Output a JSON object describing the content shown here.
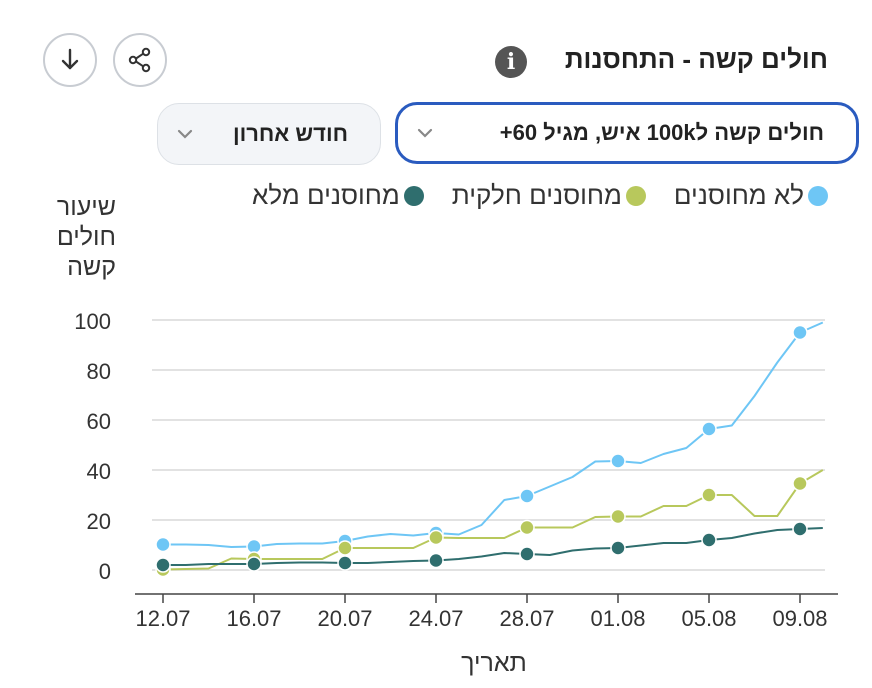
{
  "header": {
    "title": "חולים קשה - התחסנות",
    "info_icon": "info-icon",
    "download_icon": "download-icon",
    "share_icon": "share-icon"
  },
  "filters": {
    "metric": "חולים קשה ל100k איש, מגיל 60+",
    "period": "חודש אחרון"
  },
  "colors": {
    "unvaccinated": "#6ec6f5",
    "partial": "#b8c85c",
    "full": "#2f6e6e",
    "grid": "#d8d8d8",
    "select_border": "#2a5bbf"
  },
  "chart_data": {
    "type": "line",
    "ylabel": "שיעור חולים קשה",
    "xlabel": "תאריך",
    "ylim": [
      0,
      100
    ],
    "yticks": [
      0,
      20,
      40,
      60,
      80,
      100
    ],
    "xtick_labels": [
      "12.07",
      "16.07",
      "20.07",
      "24.07",
      "28.07",
      "01.08",
      "05.08",
      "09.08"
    ],
    "x": [
      "12.07",
      "13.07",
      "14.07",
      "15.07",
      "16.07",
      "17.07",
      "18.07",
      "19.07",
      "20.07",
      "21.07",
      "22.07",
      "23.07",
      "24.07",
      "25.07",
      "26.07",
      "27.07",
      "28.07",
      "29.07",
      "30.07",
      "31.07",
      "01.08",
      "02.08",
      "03.08",
      "04.08",
      "05.08",
      "06.08",
      "07.08",
      "08.08",
      "09.08",
      "10.08"
    ],
    "legend_position": "top",
    "grid": true,
    "series": [
      {
        "name": "לא מחוסנים",
        "color_key": "unvaccinated",
        "values": [
          10.2,
          10.2,
          10.0,
          9.2,
          9.4,
          10.4,
          10.6,
          10.6,
          11.6,
          13.4,
          14.4,
          13.8,
          14.8,
          14.2,
          18.0,
          28.0,
          29.6,
          33.4,
          37.2,
          43.4,
          43.6,
          42.8,
          46.4,
          48.8,
          56.4,
          57.8,
          69.6,
          83.0,
          95.0,
          99.0
        ],
        "markers_at": [
          "12.07",
          "16.07",
          "20.07",
          "24.07",
          "28.07",
          "01.08",
          "05.08",
          "09.08"
        ]
      },
      {
        "name": "מחוסנים חלקית",
        "color_key": "partial",
        "values": [
          0.2,
          0.4,
          0.6,
          4.6,
          4.4,
          4.4,
          4.4,
          4.4,
          8.8,
          8.8,
          8.8,
          8.8,
          13.0,
          12.8,
          12.8,
          12.8,
          17.0,
          17.0,
          17.0,
          21.2,
          21.4,
          21.4,
          25.6,
          25.6,
          30.0,
          30.0,
          21.6,
          21.6,
          34.6,
          40.0
        ],
        "markers_at": [
          "12.07",
          "16.07",
          "20.07",
          "24.07",
          "28.07",
          "01.08",
          "05.08",
          "09.08"
        ]
      },
      {
        "name": "מחוסנים מלא",
        "color_key": "full",
        "values": [
          2.0,
          2.0,
          2.4,
          2.4,
          2.4,
          2.8,
          3.0,
          3.0,
          2.8,
          2.8,
          3.2,
          3.6,
          3.8,
          4.4,
          5.4,
          6.8,
          6.4,
          6.0,
          7.8,
          8.6,
          8.8,
          9.8,
          10.8,
          10.8,
          12.0,
          12.8,
          14.6,
          16.0,
          16.4,
          16.8
        ],
        "markers_at": [
          "12.07",
          "16.07",
          "20.07",
          "24.07",
          "28.07",
          "01.08",
          "05.08",
          "09.08"
        ]
      }
    ]
  }
}
